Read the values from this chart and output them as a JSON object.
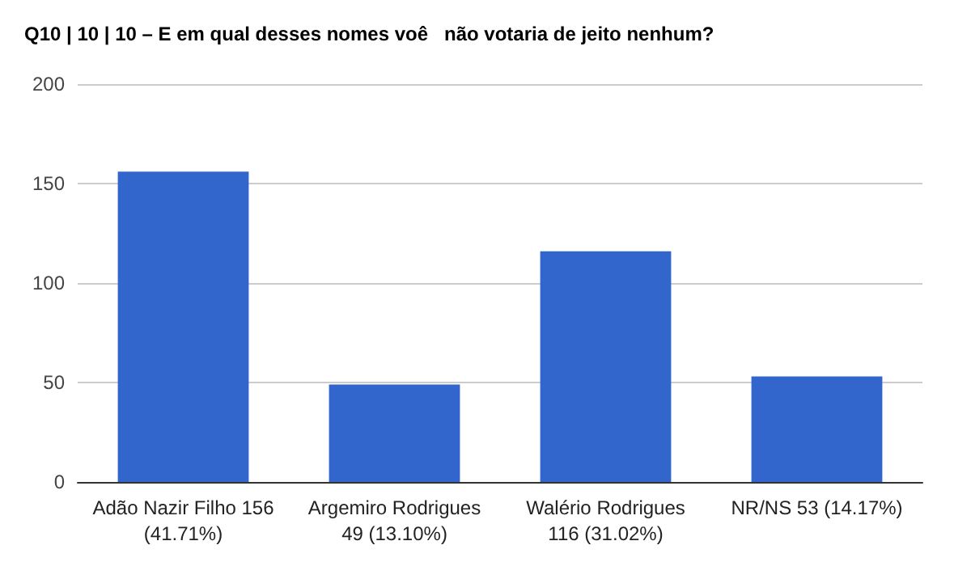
{
  "chart_data": {
    "type": "bar",
    "title": "Q10 | 10 | 10 – E em qual desses nomes voê   não votaria de jeito nenhum?",
    "categories": [
      "Adão Nazir Filho 156\n(41.71%)",
      "Argemiro Rodrigues\n49 (13.10%)",
      "Walério Rodrigues\n116 (31.02%)",
      "NR/NS 53 (14.17%)"
    ],
    "values": [
      156,
      49,
      116,
      53
    ],
    "color": "#3366cc",
    "ylim": [
      0,
      200
    ],
    "yticks": [
      0,
      50,
      100,
      150,
      200
    ],
    "grid": "y"
  }
}
